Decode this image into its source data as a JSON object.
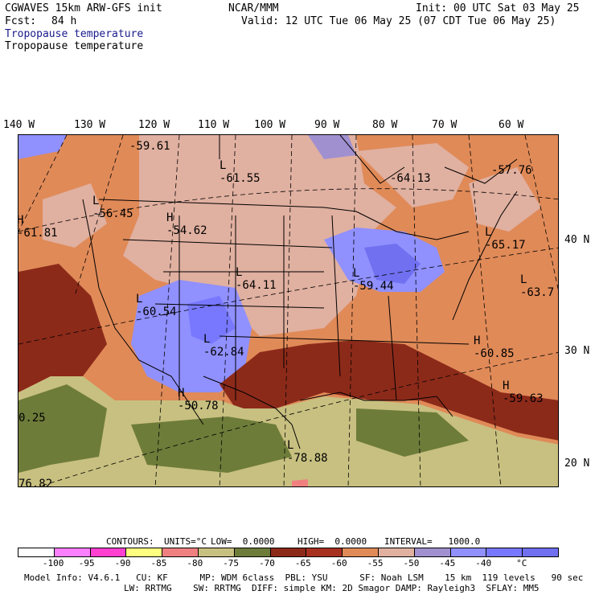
{
  "header": {
    "model": "CGWAVES 15km ARW-GFS init",
    "org": "NCAR/MMM",
    "init": "Init: 00 UTC Sat 03 May 25",
    "fcst_label": "Fcst:",
    "fcst_value": "84 h",
    "valid": "Valid: 12 UTC Tue 06 May 25 (07 CDT Tue 06 May 25)",
    "field_colored": "Tropopause temperature",
    "field_black": "Tropopause temperature"
  },
  "axes": {
    "lon_labels": [
      "140 W",
      "130 W",
      "120 W",
      "110 W",
      "100 W",
      "90 W",
      "80 W",
      "70 W",
      "60 W"
    ],
    "lat_labels": [
      "40 N",
      "30 N",
      "20 N"
    ]
  },
  "map_labels": [
    {
      "hl": "",
      "value": "-59.61"
    },
    {
      "hl": "L",
      "value": "-61.55"
    },
    {
      "hl": "",
      "value": "-64.13"
    },
    {
      "hl": "",
      "value": "-57.76"
    },
    {
      "hl": "L",
      "value": "-56.45"
    },
    {
      "hl": "H",
      "value": "-61.81"
    },
    {
      "hl": "H",
      "value": "-54.62"
    },
    {
      "hl": "L",
      "value": "-65.17"
    },
    {
      "hl": "L",
      "value": "-64.11"
    },
    {
      "hl": "L",
      "value": "-59.44"
    },
    {
      "hl": "L",
      "value": "-63.7"
    },
    {
      "hl": "L",
      "value": "-60.54"
    },
    {
      "hl": "L",
      "value": "-62.84"
    },
    {
      "hl": "H",
      "value": "-60.85"
    },
    {
      "hl": "H",
      "value": "-50.78"
    },
    {
      "hl": "H",
      "value": "-59.63"
    },
    {
      "hl": "",
      "value": "0.25"
    },
    {
      "hl": "L",
      "value": "-78.88"
    },
    {
      "hl": "",
      "value": "76.82"
    }
  ],
  "contours": {
    "label": "CONTOURS:",
    "units": "UNITS=°C",
    "low": "LOW=  0.0000",
    "high": "HIGH=  0.0000",
    "interval": "INTERVAL=   1000.0"
  },
  "colorbar": {
    "colors": [
      "#ffffff",
      "#ff80ff",
      "#ff40d0",
      "#ffff80",
      "#f08080",
      "#c8c080",
      "#6e7c3a",
      "#8c2a1a",
      "#a83020",
      "#e08a58",
      "#e0b0a0",
      "#a090d0",
      "#9090ff",
      "#7878ff",
      "#7070f0"
    ],
    "ticks": [
      "-100",
      "-95",
      "-90",
      "-85",
      "-80",
      "-75",
      "-70",
      "-65",
      "-60",
      "-55",
      "-50",
      "-45",
      "-40",
      "°C"
    ]
  },
  "footer": {
    "line1": "Model Info: V4.6.1   CU: KF      MP: WDM 6class  PBL: YSU      SF: Noah LSM    15 km  119 levels   90 sec",
    "line2": "LW: RRTMG    SW: RRTMG  DIFF: simple KM: 2D Smagor DAMP: Rayleigh3  SFLAY: MM5"
  }
}
